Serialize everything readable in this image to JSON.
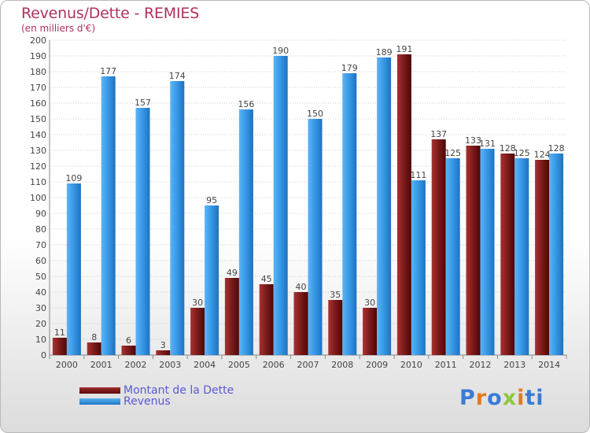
{
  "title": "Revenus/Dette - REMIES",
  "subtitle": "(en milliers d'€)",
  "logo": {
    "text": "Proxiti",
    "colors": [
      "#3a7bd5",
      "#e07b20",
      "#3a7bd5",
      "#8dc63f",
      "#e07b20",
      "#3a7bd5",
      "#3a7bd5"
    ]
  },
  "colors": {
    "dette": "#7a1a1a",
    "revenus": "#2f8fe0"
  },
  "chart_data": {
    "type": "bar",
    "categories": [
      "2000",
      "2001",
      "2002",
      "2003",
      "2004",
      "2005",
      "2006",
      "2007",
      "2008",
      "2009",
      "2010",
      "2011",
      "2012",
      "2013",
      "2014"
    ],
    "series": [
      {
        "name": "Montant de la Dette",
        "values": [
          11,
          8,
          6,
          3,
          30,
          49,
          45,
          40,
          35,
          30,
          191,
          137,
          133,
          128,
          124
        ]
      },
      {
        "name": "Revenus",
        "values": [
          109,
          177,
          157,
          174,
          95,
          156,
          190,
          150,
          179,
          189,
          111,
          125,
          131,
          125,
          128
        ]
      }
    ],
    "ylim": [
      0,
      200
    ],
    "ytick_step": 10,
    "grid": true,
    "legend": "bottom-left"
  }
}
